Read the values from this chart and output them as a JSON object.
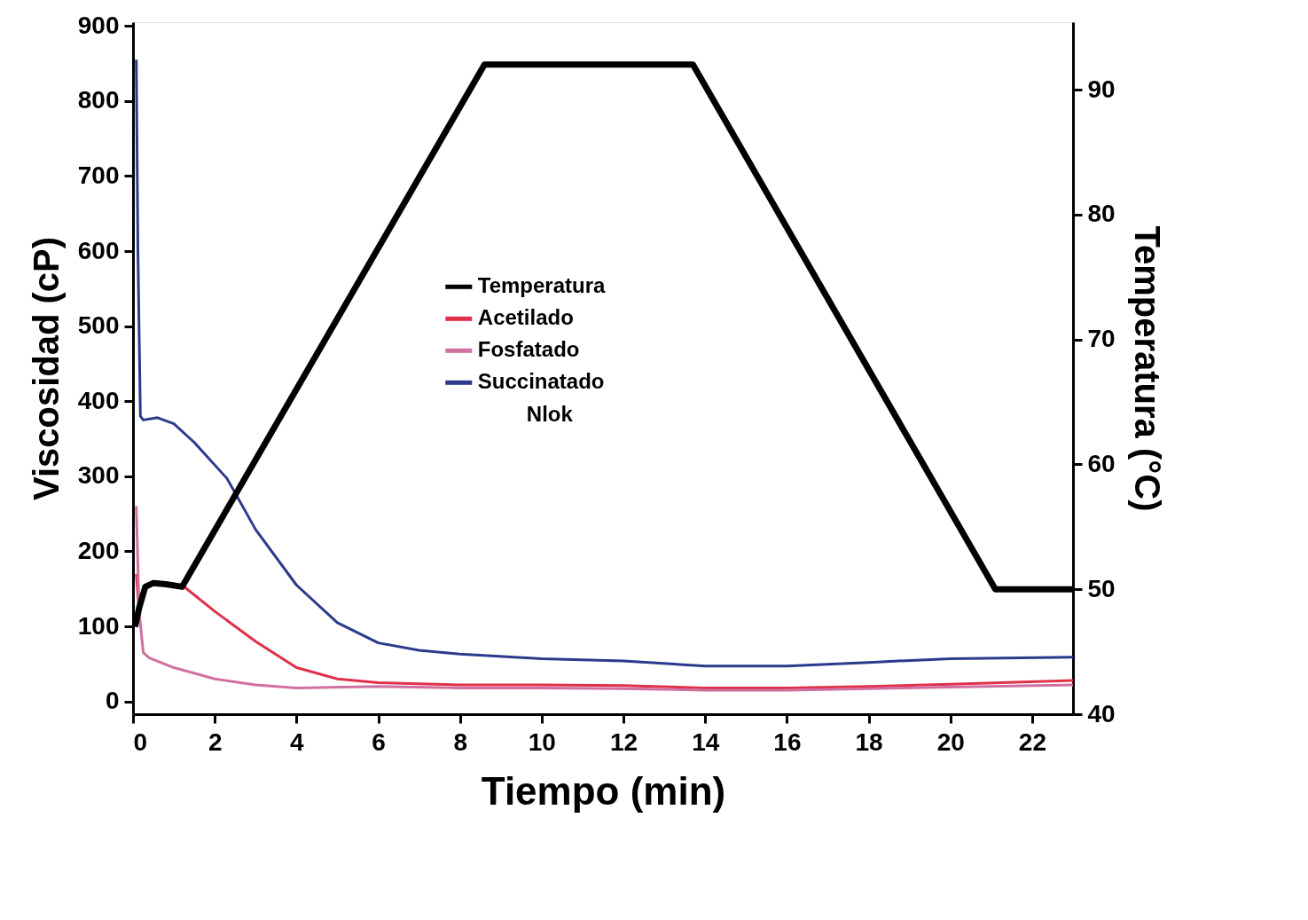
{
  "chart_data": {
    "type": "line",
    "xlabel": "Tiempo (min)",
    "ylabel": "Viscosidad (cP)",
    "y2label": "Temperatura (°C)",
    "xlim": [
      0,
      23
    ],
    "xticks": [
      0,
      2,
      4,
      6,
      8,
      10,
      12,
      14,
      16,
      18,
      20,
      22
    ],
    "ylim": [
      -17,
      905
    ],
    "yticks": [
      0,
      100,
      200,
      300,
      400,
      500,
      600,
      700,
      800,
      900
    ],
    "y2lim": [
      40,
      95.4
    ],
    "y2ticks": [
      40,
      50,
      60,
      70,
      80,
      90
    ],
    "legend": "top",
    "grid": false,
    "marker": "none",
    "line_style": "solid",
    "annotations": [
      "Nlok"
    ],
    "series": [
      {
        "name": "Temperatura",
        "color": "#000000",
        "axis": "y2",
        "x": [
          0.05,
          0.15,
          0.3,
          0.5,
          0.8,
          1.2,
          8.6,
          13.7,
          21.1,
          23
        ],
        "values": [
          47.0,
          48.5,
          50.2,
          50.5,
          50.4,
          50.2,
          92.0,
          92.0,
          50.0,
          50.0
        ]
      },
      {
        "name": "Acetilado",
        "color": "#e0304a",
        "x": [
          0.08,
          0.15,
          0.3,
          0.5,
          0.8,
          1.2,
          2,
          3,
          4,
          5,
          6,
          8,
          10,
          12,
          14,
          16,
          18,
          20,
          23
        ],
        "values": [
          170,
          120,
          150,
          160,
          158,
          155,
          120,
          80,
          45,
          30,
          25,
          22,
          22,
          21,
          18,
          18,
          20,
          23,
          28
        ]
      },
      {
        "name": "Fosfatado",
        "color": "#d070a0",
        "x": [
          0.08,
          0.15,
          0.25,
          0.4,
          1,
          2,
          3,
          4,
          6,
          8,
          10,
          12,
          14,
          16,
          18,
          20,
          23
        ],
        "values": [
          260,
          120,
          65,
          58,
          45,
          30,
          22,
          18,
          20,
          18,
          18,
          17,
          15,
          15,
          17,
          19,
          22
        ]
      },
      {
        "name": "Succinatado",
        "color": "#2b3a8c",
        "x": [
          0.08,
          0.12,
          0.18,
          0.25,
          0.6,
          1,
          1.5,
          2.3,
          3,
          4,
          5,
          6,
          7,
          8,
          10,
          12,
          14,
          16,
          18,
          20,
          23
        ],
        "values": [
          855,
          600,
          380,
          375,
          378,
          370,
          345,
          297,
          229,
          155,
          105,
          78,
          68,
          63,
          57,
          54,
          47,
          47,
          52,
          57,
          59
        ]
      }
    ]
  }
}
